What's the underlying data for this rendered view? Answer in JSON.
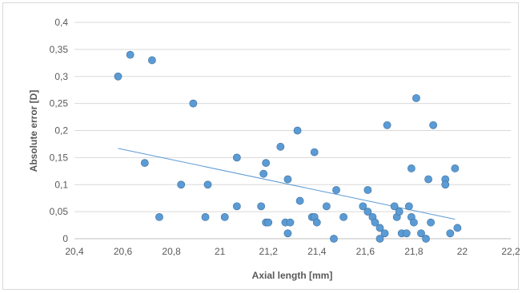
{
  "chart_data": {
    "type": "scatter",
    "xlabel": "Axial length [mm]",
    "ylabel": "Absolute error [D]",
    "xlim": [
      20.4,
      22.2
    ],
    "ylim": [
      0,
      0.4
    ],
    "x_ticks": [
      "20,4",
      "20,6",
      "20,8",
      "21",
      "21,2",
      "21,4",
      "21,6",
      "21,8",
      "22",
      "22,2"
    ],
    "y_ticks": [
      "0",
      "0,05",
      "0,1",
      "0,15",
      "0,2",
      "0,25",
      "0,3",
      "0,35",
      "0,4"
    ],
    "grid": "horizontal",
    "trendline": {
      "type": "linear",
      "x": [
        20.58,
        21.97
      ],
      "y": [
        0.167,
        0.036
      ]
    },
    "colors": {
      "marker": "#5b9bd5",
      "marker_edge": "#41719c",
      "trendline": "#5b9bd5",
      "grid": "#d9d9d9"
    },
    "points": [
      {
        "x": 20.58,
        "y": 0.3
      },
      {
        "x": 20.63,
        "y": 0.34
      },
      {
        "x": 20.69,
        "y": 0.14
      },
      {
        "x": 20.72,
        "y": 0.33
      },
      {
        "x": 20.75,
        "y": 0.04
      },
      {
        "x": 20.84,
        "y": 0.1
      },
      {
        "x": 20.89,
        "y": 0.25
      },
      {
        "x": 20.94,
        "y": 0.04
      },
      {
        "x": 20.95,
        "y": 0.1
      },
      {
        "x": 21.02,
        "y": 0.04
      },
      {
        "x": 21.07,
        "y": 0.15
      },
      {
        "x": 21.07,
        "y": 0.06
      },
      {
        "x": 21.17,
        "y": 0.06
      },
      {
        "x": 21.18,
        "y": 0.12
      },
      {
        "x": 21.19,
        "y": 0.14
      },
      {
        "x": 21.19,
        "y": 0.03
      },
      {
        "x": 21.2,
        "y": 0.03
      },
      {
        "x": 21.25,
        "y": 0.17
      },
      {
        "x": 21.27,
        "y": 0.03
      },
      {
        "x": 21.28,
        "y": 0.11
      },
      {
        "x": 21.28,
        "y": 0.01
      },
      {
        "x": 21.29,
        "y": 0.03
      },
      {
        "x": 21.32,
        "y": 0.2
      },
      {
        "x": 21.33,
        "y": 0.07
      },
      {
        "x": 21.38,
        "y": 0.04
      },
      {
        "x": 21.39,
        "y": 0.16
      },
      {
        "x": 21.39,
        "y": 0.04
      },
      {
        "x": 21.4,
        "y": 0.03
      },
      {
        "x": 21.44,
        "y": 0.06
      },
      {
        "x": 21.47,
        "y": 0.0
      },
      {
        "x": 21.48,
        "y": 0.09
      },
      {
        "x": 21.51,
        "y": 0.04
      },
      {
        "x": 21.59,
        "y": 0.06
      },
      {
        "x": 21.61,
        "y": 0.09
      },
      {
        "x": 21.61,
        "y": 0.05
      },
      {
        "x": 21.63,
        "y": 0.04
      },
      {
        "x": 21.64,
        "y": 0.03
      },
      {
        "x": 21.66,
        "y": 0.0
      },
      {
        "x": 21.66,
        "y": 0.02
      },
      {
        "x": 21.68,
        "y": 0.01
      },
      {
        "x": 21.69,
        "y": 0.21
      },
      {
        "x": 21.72,
        "y": 0.06
      },
      {
        "x": 21.73,
        "y": 0.04
      },
      {
        "x": 21.74,
        "y": 0.05
      },
      {
        "x": 21.75,
        "y": 0.01
      },
      {
        "x": 21.77,
        "y": 0.01
      },
      {
        "x": 21.78,
        "y": 0.06
      },
      {
        "x": 21.79,
        "y": 0.13
      },
      {
        "x": 21.79,
        "y": 0.04
      },
      {
        "x": 21.8,
        "y": 0.03
      },
      {
        "x": 21.81,
        "y": 0.26
      },
      {
        "x": 21.83,
        "y": 0.01
      },
      {
        "x": 21.85,
        "y": 0.0
      },
      {
        "x": 21.86,
        "y": 0.11
      },
      {
        "x": 21.87,
        "y": 0.03
      },
      {
        "x": 21.88,
        "y": 0.21
      },
      {
        "x": 21.93,
        "y": 0.11
      },
      {
        "x": 21.93,
        "y": 0.1
      },
      {
        "x": 21.95,
        "y": 0.01
      },
      {
        "x": 21.97,
        "y": 0.13
      },
      {
        "x": 21.98,
        "y": 0.02
      }
    ]
  }
}
